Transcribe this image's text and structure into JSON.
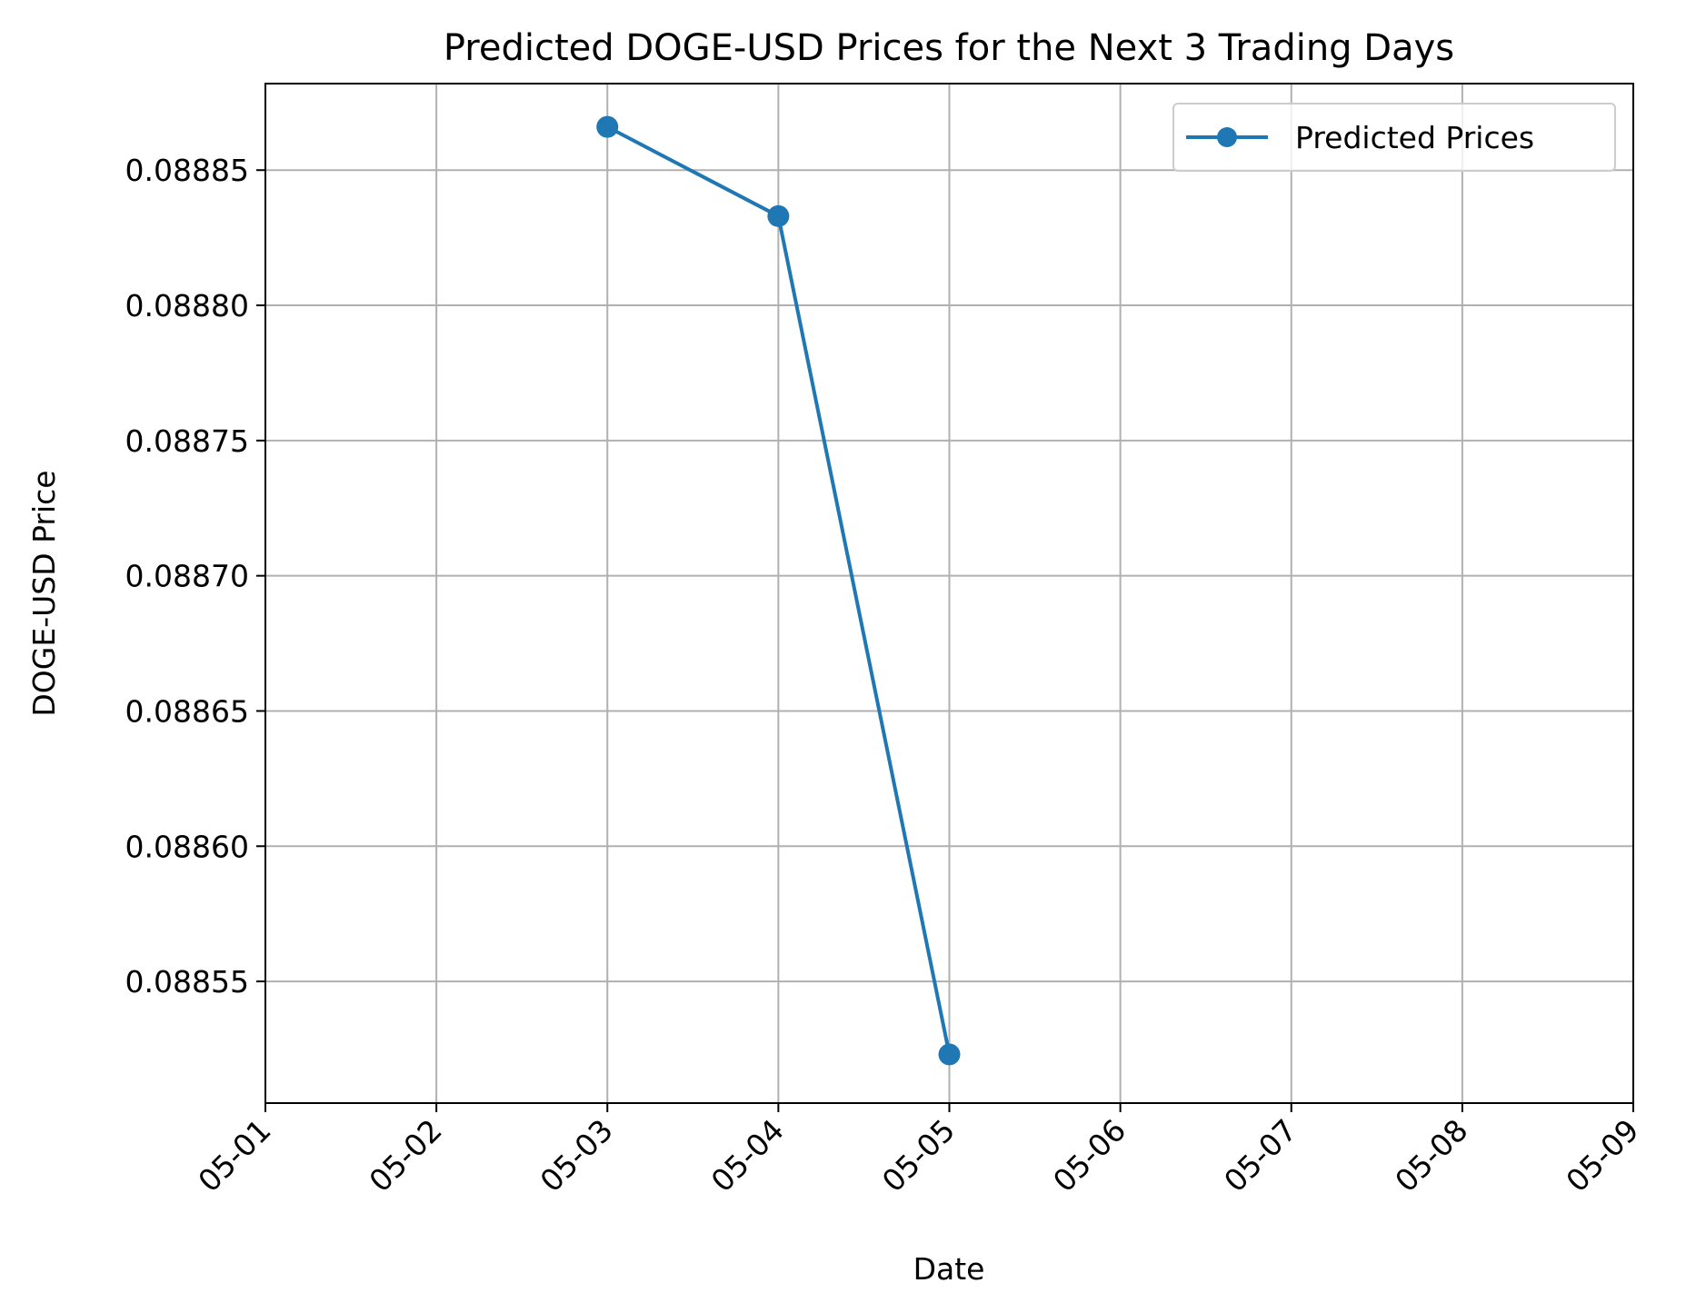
{
  "chart_data": {
    "type": "line",
    "title": "Predicted DOGE-USD Prices for the Next 3 Trading Days",
    "xlabel": "Date",
    "ylabel": "DOGE-USD Price",
    "x_ticks": [
      "05-01",
      "05-02",
      "05-03",
      "05-04",
      "05-05",
      "05-06",
      "05-07",
      "05-08",
      "05-09"
    ],
    "y_ticks": [
      0.08855,
      0.0886,
      0.08865,
      0.0887,
      0.08875,
      0.0888,
      0.08885
    ],
    "y_tick_labels": [
      "0.08855",
      "0.08860",
      "0.08865",
      "0.08870",
      "0.08875",
      "0.08880",
      "0.08885"
    ],
    "xlim": [
      "05-01",
      "05-09"
    ],
    "ylim": [
      0.088505,
      0.088882
    ],
    "grid": true,
    "legend_position": "upper right",
    "series": [
      {
        "name": "Predicted Prices",
        "color": "#1f77b4",
        "marker": "circle",
        "x": [
          "05-03",
          "05-04",
          "05-05"
        ],
        "values": [
          0.088866,
          0.088833,
          0.088523
        ]
      }
    ]
  }
}
